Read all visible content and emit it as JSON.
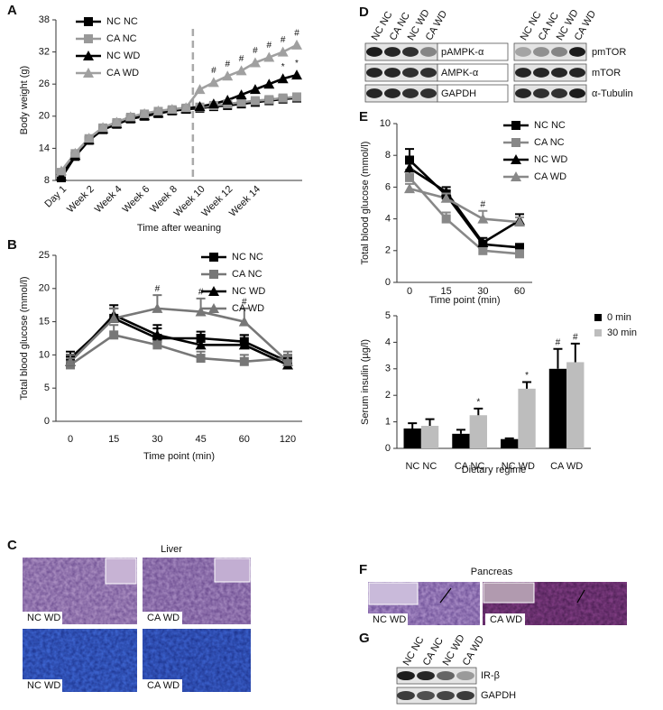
{
  "chart_data": [
    {
      "type": "line",
      "ylabel": "Body weight (g)",
      "xlabel": "Time after weaning",
      "categories": [
        "Day 1",
        null,
        "Week 2",
        null,
        "Week 4",
        null,
        "Week 6",
        null,
        "Week 8",
        null,
        "Week 10",
        null,
        "Week 12",
        null,
        "Week 14",
        null,
        null,
        null
      ],
      "xtick_rotation": -45,
      "vline": 9.5,
      "vline_color": "#aaaaaa",
      "ylim": [
        8,
        38
      ],
      "yticks": [
        8,
        14,
        20,
        26,
        32,
        38
      ],
      "legend": "upper left",
      "series": [
        {
          "name": "NC NC",
          "color": "#000000",
          "marker": "square",
          "values": [
            8.5,
            12.5,
            15.5,
            17.5,
            18.5,
            19.5,
            20,
            20.5,
            21,
            21.3,
            21.5,
            21.8,
            22,
            22.3,
            22.6,
            22.9,
            23.2,
            23.4
          ]
        },
        {
          "name": "CA NC",
          "color": "#999999",
          "marker": "square",
          "values": [
            9.5,
            13,
            15.8,
            17.8,
            18.8,
            19.8,
            20.4,
            20.9,
            21.2,
            21.5,
            21.7,
            22,
            22.3,
            22.6,
            22.9,
            23.1,
            23.4,
            23.6
          ]
        },
        {
          "name": "NC WD",
          "color": "#000000",
          "marker": "triangle",
          "values": [
            8.8,
            12.7,
            15.6,
            17.6,
            18.6,
            19.6,
            20.1,
            20.6,
            21.1,
            21.4,
            21.8,
            22.3,
            23,
            24,
            25,
            26,
            27,
            27.7
          ]
        },
        {
          "name": "CA WD",
          "color": "#a0a0a0",
          "marker": "triangle",
          "values": [
            9.8,
            13.1,
            15.9,
            17.9,
            18.9,
            19.9,
            20.5,
            21,
            21.3,
            21.6,
            25,
            26.3,
            27.5,
            28.5,
            30,
            31,
            32,
            33.3
          ]
        }
      ],
      "annotations": [
        {
          "text": "#",
          "series": 3,
          "index": 11
        },
        {
          "text": "#",
          "series": 3,
          "index": 12
        },
        {
          "text": "#",
          "series": 3,
          "index": 13
        },
        {
          "text": "#",
          "series": 3,
          "index": 14
        },
        {
          "text": "#",
          "series": 3,
          "index": 15
        },
        {
          "text": "#",
          "series": 3,
          "index": 16
        },
        {
          "text": "#",
          "series": 3,
          "index": 17
        },
        {
          "text": "*",
          "series": 2,
          "index": 16
        },
        {
          "text": "*",
          "series": 2,
          "index": 17
        }
      ]
    },
    {
      "type": "line",
      "ylabel": "Total blood glucose (mmol/l)",
      "xlabel": "Time point (min)",
      "categories": [
        "0",
        "15",
        "30",
        "45",
        "60",
        "120"
      ],
      "ylim": [
        0,
        25
      ],
      "yticks": [
        0,
        5,
        10,
        15,
        20,
        25
      ],
      "legend": "upper right",
      "series": [
        {
          "name": "NC NC",
          "color": "#000000",
          "marker": "square",
          "values": [
            9.5,
            15.5,
            12.5,
            12.5,
            12,
            9
          ],
          "errors": [
            1,
            1.5,
            1.5,
            1,
            1,
            1
          ]
        },
        {
          "name": "CA NC",
          "color": "#777777",
          "marker": "square",
          "values": [
            8.5,
            13,
            11.5,
            9.5,
            9,
            9.5
          ],
          "errors": [
            1,
            1.5,
            1,
            1,
            1,
            1
          ]
        },
        {
          "name": "NC WD",
          "color": "#000000",
          "marker": "triangle",
          "values": [
            9,
            16,
            13,
            11.5,
            11.5,
            8.5
          ],
          "errors": [
            1,
            1.5,
            1.5,
            1.5,
            1.5,
            1
          ]
        },
        {
          "name": "CA WD",
          "color": "#777777",
          "marker": "triangle",
          "values": [
            9,
            15.5,
            17,
            16.5,
            15,
            9
          ],
          "errors": [
            1,
            1.5,
            2,
            2,
            2,
            1
          ]
        }
      ],
      "annotations": [
        {
          "text": "#",
          "series": 3,
          "index": 2
        },
        {
          "text": "#",
          "series": 3,
          "index": 3
        },
        {
          "text": "#",
          "series": 3,
          "index": 4
        }
      ]
    },
    {
      "type": "line",
      "ylabel": "Total blood glucose (mmol/l)",
      "xlabel": "Time point (min)",
      "categories": [
        "0",
        "15",
        "30",
        "60"
      ],
      "ylim": [
        0,
        10
      ],
      "yticks": [
        0,
        2,
        4,
        6,
        8,
        10
      ],
      "legend": "upper right",
      "series": [
        {
          "name": "NC NC",
          "color": "#000000",
          "marker": "square",
          "values": [
            7.7,
            5.5,
            2.4,
            2.2
          ],
          "errors": [
            0.7,
            0.3,
            0.2,
            0.2
          ]
        },
        {
          "name": "CA NC",
          "color": "#888888",
          "marker": "square",
          "values": [
            6.6,
            4,
            2,
            1.8
          ],
          "errors": [
            0.5,
            0.4,
            0.2,
            0.2
          ]
        },
        {
          "name": "NC WD",
          "color": "#000000",
          "marker": "triangle",
          "values": [
            7.2,
            5.7,
            2.5,
            3.9
          ],
          "errors": [
            0.6,
            0.3,
            0.3,
            0.4
          ]
        },
        {
          "name": "CA WD",
          "color": "#888888",
          "marker": "triangle",
          "values": [
            5.9,
            5.3,
            4,
            3.8
          ],
          "errors": [
            0.3,
            0.3,
            0.5,
            0.3
          ]
        }
      ],
      "annotations": [
        {
          "text": "#",
          "series": 3,
          "index": 2
        }
      ]
    },
    {
      "type": "bar",
      "ylabel": "Serum insulin (µg/l)",
      "xlabel": "Dietary regime",
      "categories": [
        "NC NC",
        "CA NC",
        "NC WD",
        "CA WD"
      ],
      "ylim": [
        0,
        5
      ],
      "yticks": [
        0,
        1,
        2,
        3,
        4,
        5
      ],
      "legend": "upper right",
      "series": [
        {
          "name": "0 min",
          "color": "#000000",
          "values": [
            0.75,
            0.55,
            0.35,
            3
          ],
          "errors": [
            0.2,
            0.15,
            0.03,
            0.75
          ]
        },
        {
          "name": "30 min",
          "color": "#bdbdbd",
          "values": [
            0.85,
            1.25,
            2.25,
            3.25
          ],
          "errors": [
            0.25,
            0.25,
            0.25,
            0.7
          ]
        }
      ],
      "annotations": [
        {
          "text": "*",
          "series": 1,
          "index": 1
        },
        {
          "text": "*",
          "series": 1,
          "index": 2
        },
        {
          "text": "#",
          "series": 0,
          "index": 3
        },
        {
          "text": "#",
          "series": 1,
          "index": 3
        }
      ]
    }
  ],
  "panel_labels": [
    "A",
    "B",
    "C",
    "D",
    "E",
    "F",
    "G"
  ],
  "liver": {
    "title": "Liver",
    "images": [
      "NC WD",
      "CA WD",
      "NC WD",
      "CA WD"
    ]
  },
  "blots_d": {
    "lanes_left": [
      "NC NC",
      "CA NC",
      "NC WD",
      "CA WD"
    ],
    "lanes_right": [
      "NC NC",
      "CA NC",
      "NC WD",
      "CA WD"
    ],
    "proteins_left": [
      "pAMPK-α",
      "AMPK-α",
      "GAPDH"
    ],
    "proteins_right": [
      "pmTOR",
      "mTOR",
      "α-Tubulin"
    ]
  },
  "pancreas": {
    "title": "Pancreas",
    "images": [
      "NC WD",
      "CA WD"
    ]
  },
  "blots_g": {
    "lanes": [
      "NC NC",
      "CA NC",
      "NC WD",
      "CA WD"
    ],
    "proteins": [
      "IR-β",
      "GAPDH"
    ]
  }
}
